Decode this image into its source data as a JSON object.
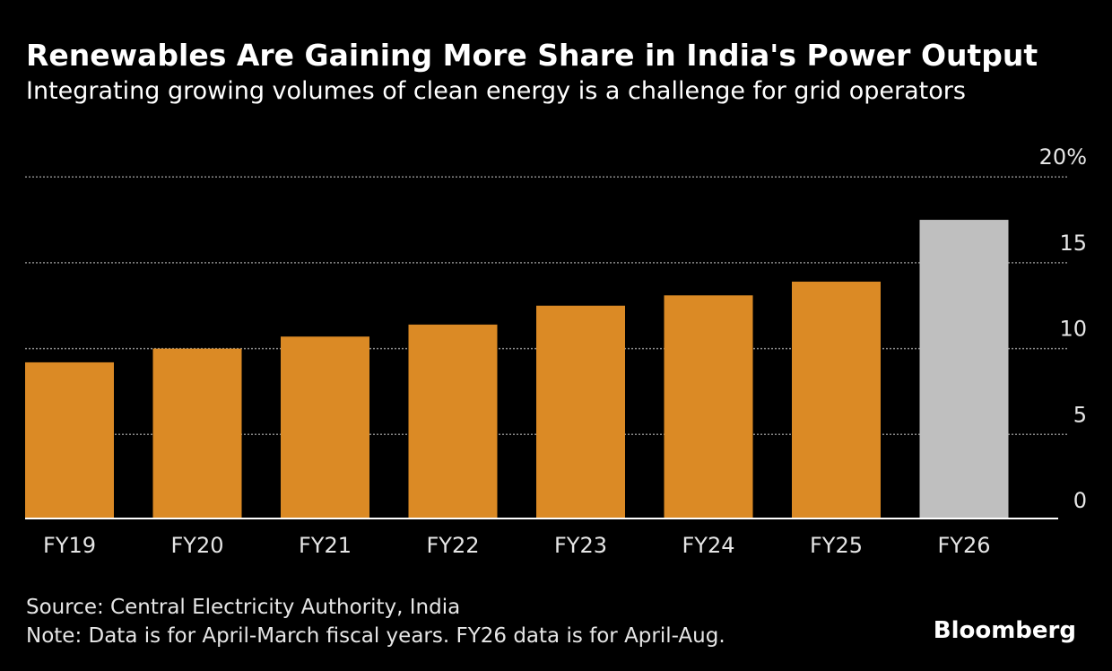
{
  "chart_data": {
    "type": "bar",
    "title": "Renewables Are Gaining More Share in India's Power Output",
    "subtitle": "Integrating growing volumes of clean energy is a challenge for grid operators",
    "categories": [
      "FY19",
      "FY20",
      "FY21",
      "FY22",
      "FY23",
      "FY24",
      "FY25",
      "FY26"
    ],
    "values": [
      9.2,
      10.0,
      10.7,
      11.4,
      12.5,
      13.1,
      13.9,
      17.5
    ],
    "bar_colors": [
      "#db8a25",
      "#db8a25",
      "#db8a25",
      "#db8a25",
      "#db8a25",
      "#db8a25",
      "#db8a25",
      "#bfbfbf"
    ],
    "ylim": [
      0,
      20
    ],
    "yticks": [
      0,
      5,
      10,
      15,
      20
    ],
    "ytick_labels": [
      "0",
      "5",
      "10",
      "15",
      "20%"
    ],
    "y_axis_position": "right",
    "grid": true,
    "xlabel": "",
    "ylabel": ""
  },
  "footer": {
    "source": "Source: Central Electricity Authority, India",
    "note": "Note: Data is for April-March fiscal years. FY26 data is for April-Aug.",
    "logo": "Bloomberg"
  }
}
